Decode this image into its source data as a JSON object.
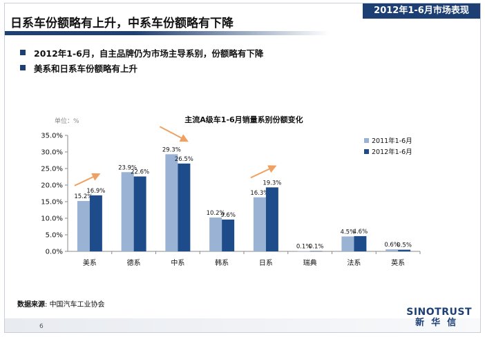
{
  "header": {
    "tag": "2012年1-6月市场表现",
    "title": "日系车份额略有上升，中系车份额略有下降"
  },
  "bullets": [
    "2012年1-6月，自主品牌仍为市场主导系别，份额略有下降",
    "美系和日系车份额略有上升"
  ],
  "source": {
    "label": "数据来源",
    "sep": ":",
    "text": "中国汽车工业协会"
  },
  "footer": {
    "page": "6",
    "logo_en": "SINOTRUST",
    "logo_cn": "新华信"
  },
  "colors": {
    "brand": "#1d3f73",
    "series1": "#9ab3d5",
    "series2": "#1e4c8a",
    "arrow": "#f0a060"
  },
  "chart_data": {
    "type": "bar",
    "title": "主流A级车1-6月销量系别份额变化",
    "unit_label": "单位：%",
    "categories": [
      "美系",
      "德系",
      "中系",
      "韩系",
      "日系",
      "瑞典",
      "法系",
      "英系"
    ],
    "series": [
      {
        "name": "2011年1-6月",
        "values": [
          15.2,
          23.9,
          29.3,
          10.2,
          16.3,
          0.1,
          4.5,
          0.6
        ],
        "labels": [
          "15.2%",
          "23.9%",
          "29.3%",
          "10.2%",
          "16.3%",
          "0.1%",
          "4.5%",
          "0.6%"
        ]
      },
      {
        "name": "2012年1-6月",
        "values": [
          16.9,
          22.6,
          26.5,
          9.6,
          19.3,
          0.1,
          4.6,
          0.5
        ],
        "labels": [
          "16.9%",
          "22.6%",
          "26.5%",
          "9.6%",
          "19.3%",
          "0.1%",
          "4.6%",
          "0.5%"
        ]
      }
    ],
    "yticks": [
      "0.0%",
      "5.0%",
      "10.0%",
      "15.0%",
      "20.0%",
      "25.0%",
      "30.0%",
      "35.0%"
    ],
    "ylim": [
      0,
      35
    ],
    "legend_position": "right",
    "trend_arrows": [
      {
        "category": "美系",
        "direction": "up"
      },
      {
        "category": "中系",
        "direction": "down"
      },
      {
        "category": "日系",
        "direction": "up"
      }
    ]
  }
}
